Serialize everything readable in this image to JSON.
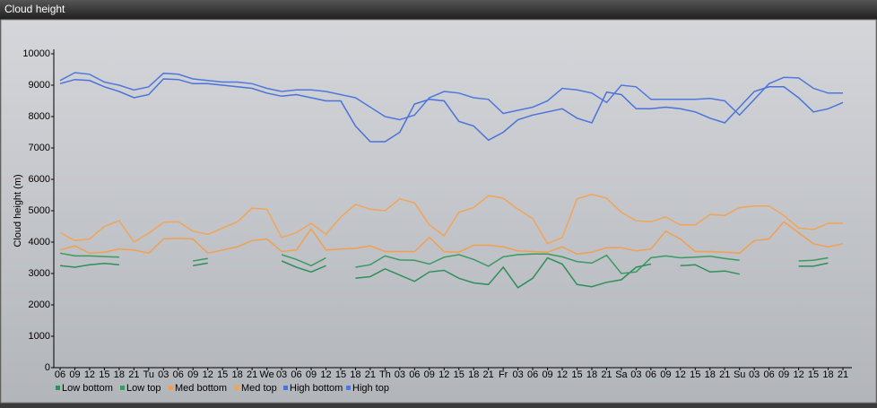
{
  "window_title": "Cloud height",
  "chart_data": {
    "type": "line",
    "y_label": "Cloud height (m)",
    "categories": [
      "06",
      "09",
      "12",
      "15",
      "18",
      "21",
      "Tu",
      "03",
      "06",
      "09",
      "12",
      "15",
      "18",
      "21",
      "We",
      "03",
      "06",
      "09",
      "12",
      "15",
      "18",
      "21",
      "Th",
      "03",
      "06",
      "09",
      "12",
      "15",
      "18",
      "21",
      "Fr",
      "03",
      "06",
      "09",
      "12",
      "15",
      "18",
      "21",
      "Sa",
      "03",
      "06",
      "09",
      "12",
      "15",
      "18",
      "21",
      "Su",
      "03",
      "06",
      "09",
      "12",
      "15",
      "18",
      "21"
    ],
    "ylim": [
      0,
      10000
    ],
    "yticks": [
      0,
      1000,
      2000,
      3000,
      4000,
      5000,
      6000,
      7000,
      8000,
      9000,
      10000
    ],
    "grid": false,
    "series": [
      {
        "name": "Low bottom",
        "color": "#2f8f5a",
        "values": [
          3250,
          3200,
          3280,
          3320,
          3280,
          null,
          null,
          null,
          null,
          3250,
          3330,
          null,
          null,
          null,
          null,
          3400,
          3200,
          3050,
          3250,
          null,
          2850,
          2900,
          3150,
          2950,
          2750,
          3050,
          3100,
          2850,
          2700,
          2650,
          3200,
          2550,
          2850,
          3500,
          3300,
          2650,
          2580,
          2720,
          2800,
          3200,
          3300,
          null,
          3250,
          3280,
          3050,
          3080,
          2980,
          null,
          null,
          null,
          3230,
          3230,
          3330,
          null
        ]
      },
      {
        "name": "Low top",
        "color": "#3a9a62",
        "values": [
          3650,
          3560,
          3560,
          3540,
          3520,
          null,
          null,
          null,
          null,
          3400,
          3480,
          null,
          null,
          null,
          null,
          3600,
          3450,
          3250,
          3500,
          null,
          3200,
          3280,
          3560,
          3430,
          3420,
          3300,
          3520,
          3600,
          3450,
          3230,
          3530,
          3600,
          3620,
          3620,
          3530,
          3380,
          3330,
          3580,
          3000,
          3050,
          3500,
          3560,
          3500,
          3520,
          3550,
          3480,
          3420,
          null,
          null,
          null,
          3400,
          3420,
          3500,
          null
        ]
      },
      {
        "name": "Med bottom",
        "color": "#f0a050",
        "values": [
          3750,
          3880,
          3650,
          3680,
          3780,
          3750,
          3650,
          4100,
          4120,
          4100,
          3650,
          3750,
          3850,
          4050,
          4100,
          3700,
          3750,
          4420,
          3750,
          3780,
          3800,
          3880,
          3700,
          3700,
          3700,
          4150,
          3700,
          3680,
          3900,
          3900,
          3850,
          3720,
          3700,
          3680,
          3850,
          3620,
          3680,
          3820,
          3820,
          3720,
          3780,
          4350,
          4100,
          3700,
          3700,
          3680,
          3650,
          4050,
          4100,
          4650,
          4300,
          3950,
          3850,
          3950
        ]
      },
      {
        "name": "Med top",
        "color": "#f0a558",
        "values": [
          4300,
          4050,
          4100,
          4500,
          4680,
          4000,
          4280,
          4630,
          4650,
          4350,
          4250,
          4450,
          4650,
          5080,
          5050,
          4150,
          4300,
          4600,
          4250,
          4800,
          5200,
          5050,
          5000,
          5380,
          5250,
          4550,
          4200,
          4950,
          5100,
          5480,
          5400,
          5050,
          4750,
          3950,
          4150,
          5380,
          5520,
          5400,
          4950,
          4680,
          4650,
          4800,
          4550,
          4550,
          4880,
          4850,
          5100,
          5150,
          5150,
          4850,
          4450,
          4400,
          4600,
          4600
        ]
      },
      {
        "name": "High bottom",
        "color": "#4a72d8",
        "values": [
          9050,
          9180,
          9150,
          8950,
          8800,
          8600,
          8700,
          9200,
          9180,
          9050,
          9050,
          9000,
          8950,
          8900,
          8750,
          8650,
          8700,
          8600,
          8500,
          8500,
          7700,
          7200,
          7200,
          7500,
          8400,
          8550,
          8500,
          7850,
          7700,
          7250,
          7500,
          7900,
          8050,
          8150,
          8250,
          7950,
          7800,
          8780,
          8700,
          8250,
          8250,
          8300,
          8250,
          8150,
          7950,
          7800,
          8300,
          8800,
          8950,
          8950,
          8600,
          8150,
          8250,
          8450
        ]
      },
      {
        "name": "High top",
        "color": "#4f78dc",
        "values": [
          9150,
          9400,
          9350,
          9100,
          9000,
          8850,
          8950,
          9380,
          9350,
          9200,
          9150,
          9100,
          9100,
          9050,
          8900,
          8800,
          8850,
          8850,
          8800,
          8700,
          8600,
          8300,
          8000,
          7900,
          8050,
          8600,
          8800,
          8750,
          8600,
          8550,
          8100,
          8200,
          8300,
          8500,
          8900,
          8850,
          8750,
          8450,
          9000,
          8950,
          8550,
          8550,
          8550,
          8550,
          8580,
          8500,
          8050,
          8550,
          9050,
          9250,
          9230,
          8900,
          8750,
          8750
        ]
      }
    ]
  }
}
